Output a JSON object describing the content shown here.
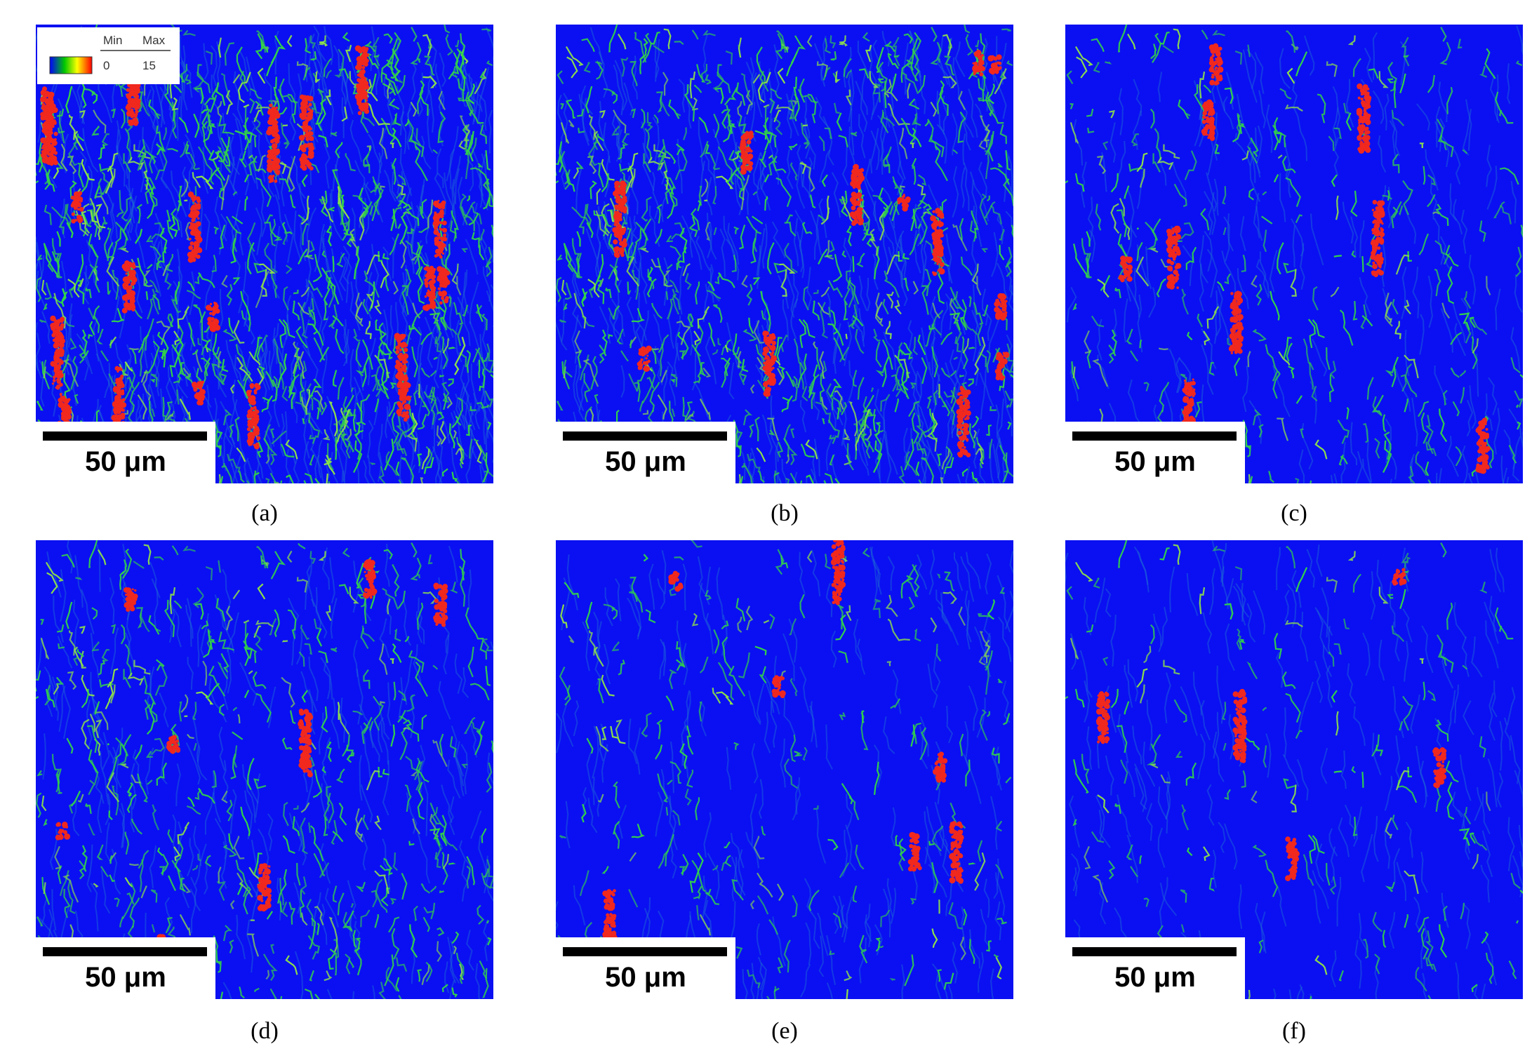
{
  "panels": [
    {
      "label": "(a)",
      "scale_bar": "50 μm"
    },
    {
      "label": "(b)",
      "scale_bar": "50 μm"
    },
    {
      "label": "(c)",
      "scale_bar": "50 μm"
    },
    {
      "label": "(d)",
      "scale_bar": "50 μm"
    },
    {
      "label": "(e)",
      "scale_bar": "50 μm"
    },
    {
      "label": "(f)",
      "scale_bar": "50 μm"
    }
  ],
  "legend": {
    "min_label": "Min",
    "max_label": "Max",
    "min": "0",
    "max": "15"
  }
}
